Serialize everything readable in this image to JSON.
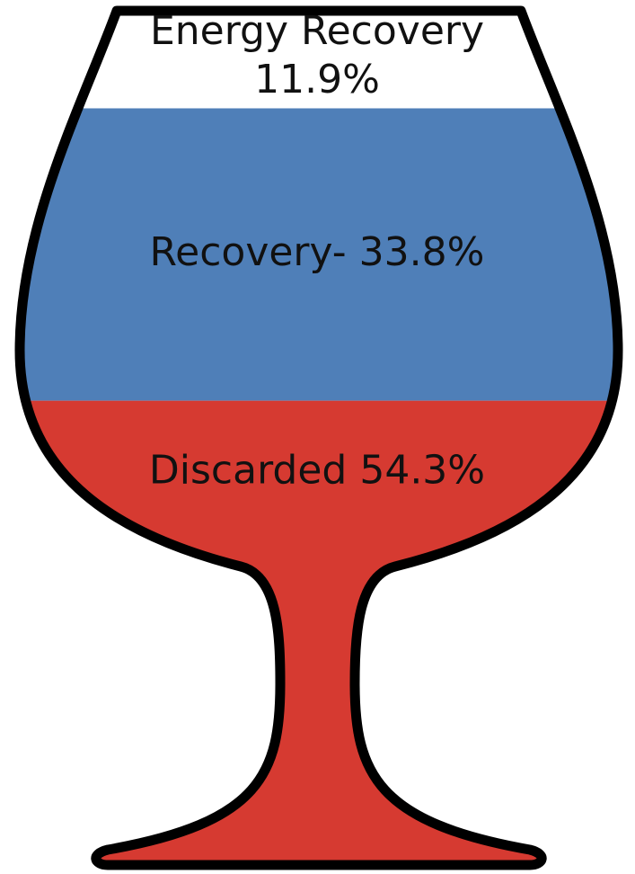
{
  "chart_data": {
    "type": "glass",
    "categories": [
      "Energy Recovery",
      "Recovery-",
      "Discarded"
    ],
    "values": [
      11.9,
      33.8,
      54.3
    ],
    "value_labels": [
      "11.9%",
      "33.8%",
      "54.3%"
    ],
    "colors": [
      "#ffffff",
      "#4f7fb8",
      "#d63a31"
    ]
  }
}
